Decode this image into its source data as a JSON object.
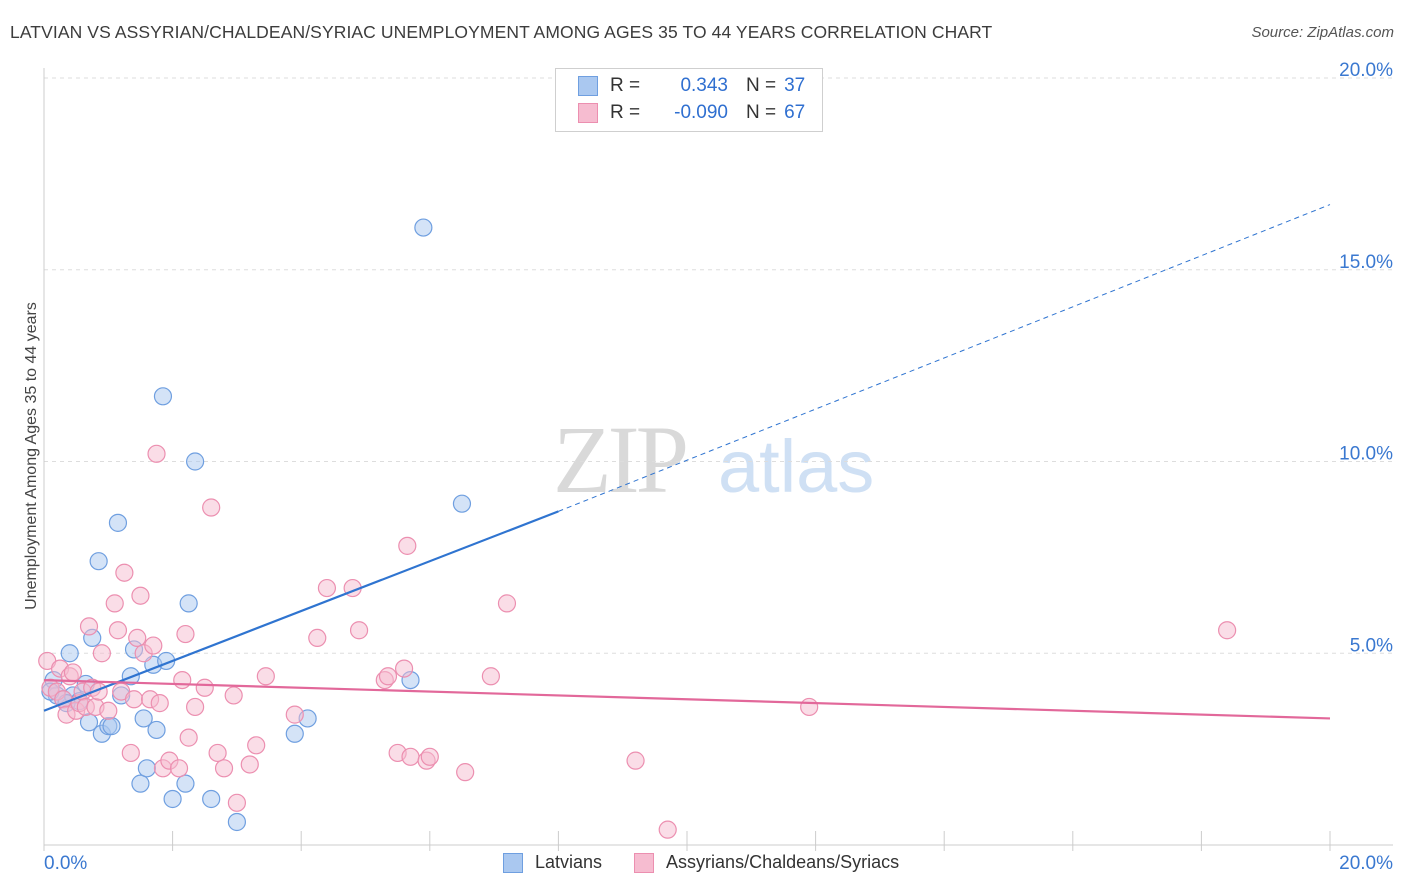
{
  "header": {
    "title": "LATVIAN VS ASSYRIAN/CHALDEAN/SYRIAC UNEMPLOYMENT AMONG AGES 35 TO 44 YEARS CORRELATION CHART",
    "source": "Source: ZipAtlas.com"
  },
  "watermark": {
    "zip": "ZIP",
    "atlas": "atlas"
  },
  "legend_top": {
    "rows": [
      {
        "r_label": "R =",
        "r_value": "0.343",
        "n_label": "N =",
        "n_value": "37"
      },
      {
        "r_label": "R =",
        "r_value": "-0.090",
        "n_label": "N =",
        "n_value": "67"
      }
    ]
  },
  "colors": {
    "blue_fill": "#aac8f0",
    "blue_stroke": "#6f9fe0",
    "blue_line": "#2f74d0",
    "pink_fill": "#f6bcd0",
    "pink_stroke": "#ec8fb0",
    "pink_line": "#e2689a",
    "tick_label": "#3a78d0",
    "grid": "#dddddd"
  },
  "chart_data": {
    "type": "scatter",
    "title": "LATVIAN VS ASSYRIAN/CHALDEAN/SYRIAC UNEMPLOYMENT AMONG AGES 35 TO 44 YEARS CORRELATION CHART",
    "xlabel": "",
    "ylabel": "Unemployment Among Ages 35 to 44 years",
    "xlim": [
      0,
      20
    ],
    "ylim": [
      0,
      20
    ],
    "x_tick_labels": [
      "0.0%",
      "20.0%"
    ],
    "y_tick_values": [
      5,
      10,
      15,
      20
    ],
    "y_tick_labels": [
      "5.0%",
      "10.0%",
      "15.0%",
      "20.0%"
    ],
    "grid": true,
    "series": [
      {
        "name": "Latvians",
        "r": 0.343,
        "n": 37,
        "trend": {
          "x0": 0,
          "y0": 3.5,
          "x1": 8,
          "y1": 8.7,
          "dashed_to_x": 20,
          "dashed_to_y": 16.7
        },
        "points": [
          [
            0.15,
            4.3
          ],
          [
            0.2,
            3.9
          ],
          [
            0.3,
            3.8
          ],
          [
            0.4,
            5.0
          ],
          [
            0.45,
            3.9
          ],
          [
            0.55,
            3.75
          ],
          [
            0.65,
            4.2
          ],
          [
            0.7,
            3.2
          ],
          [
            0.75,
            5.4
          ],
          [
            0.85,
            7.4
          ],
          [
            0.9,
            2.9
          ],
          [
            1.0,
            3.1
          ],
          [
            1.05,
            3.1
          ],
          [
            1.15,
            8.4
          ],
          [
            1.2,
            3.9
          ],
          [
            1.35,
            4.4
          ],
          [
            1.4,
            5.1
          ],
          [
            1.5,
            1.6
          ],
          [
            1.55,
            3.3
          ],
          [
            1.6,
            2.0
          ],
          [
            1.7,
            4.7
          ],
          [
            1.75,
            3.0
          ],
          [
            1.85,
            11.7
          ],
          [
            1.9,
            4.8
          ],
          [
            2.0,
            1.2
          ],
          [
            2.2,
            1.6
          ],
          [
            2.25,
            6.3
          ],
          [
            2.35,
            10.0
          ],
          [
            2.6,
            1.2
          ],
          [
            3.0,
            0.6
          ],
          [
            3.9,
            2.9
          ],
          [
            4.1,
            3.3
          ],
          [
            5.7,
            4.3
          ],
          [
            5.9,
            16.1
          ],
          [
            6.5,
            8.9
          ],
          [
            0.1,
            4.0
          ],
          [
            0.35,
            3.7
          ]
        ]
      },
      {
        "name": "Assyrians/Chaldeans/Syriacs",
        "r": -0.09,
        "n": 67,
        "trend": {
          "x0": 0,
          "y0": 4.3,
          "x1": 20,
          "y1": 3.3
        },
        "points": [
          [
            0.05,
            4.8
          ],
          [
            0.1,
            4.1
          ],
          [
            0.2,
            4.0
          ],
          [
            0.25,
            4.6
          ],
          [
            0.3,
            3.8
          ],
          [
            0.35,
            3.4
          ],
          [
            0.4,
            4.4
          ],
          [
            0.45,
            4.5
          ],
          [
            0.5,
            3.5
          ],
          [
            0.55,
            3.7
          ],
          [
            0.6,
            4.0
          ],
          [
            0.65,
            3.6
          ],
          [
            0.7,
            5.7
          ],
          [
            0.75,
            4.1
          ],
          [
            0.8,
            3.6
          ],
          [
            0.85,
            4.0
          ],
          [
            0.9,
            5.0
          ],
          [
            1.0,
            3.5
          ],
          [
            1.1,
            6.3
          ],
          [
            1.15,
            5.6
          ],
          [
            1.2,
            4.0
          ],
          [
            1.25,
            7.1
          ],
          [
            1.35,
            2.4
          ],
          [
            1.4,
            3.8
          ],
          [
            1.45,
            5.4
          ],
          [
            1.5,
            6.5
          ],
          [
            1.55,
            5.0
          ],
          [
            1.65,
            3.8
          ],
          [
            1.7,
            5.2
          ],
          [
            1.75,
            10.2
          ],
          [
            1.8,
            3.7
          ],
          [
            1.85,
            2.0
          ],
          [
            1.95,
            2.2
          ],
          [
            2.1,
            2.0
          ],
          [
            2.15,
            4.3
          ],
          [
            2.2,
            5.5
          ],
          [
            2.25,
            2.8
          ],
          [
            2.35,
            3.6
          ],
          [
            2.5,
            4.1
          ],
          [
            2.6,
            8.8
          ],
          [
            2.7,
            2.4
          ],
          [
            2.8,
            2.0
          ],
          [
            2.95,
            3.9
          ],
          [
            3.0,
            1.1
          ],
          [
            3.2,
            2.1
          ],
          [
            3.3,
            2.6
          ],
          [
            3.45,
            4.4
          ],
          [
            3.9,
            3.4
          ],
          [
            4.4,
            6.7
          ],
          [
            4.25,
            5.4
          ],
          [
            4.8,
            6.7
          ],
          [
            4.9,
            5.6
          ],
          [
            5.3,
            4.3
          ],
          [
            5.35,
            4.4
          ],
          [
            5.5,
            2.4
          ],
          [
            5.6,
            4.6
          ],
          [
            5.65,
            7.8
          ],
          [
            5.7,
            2.3
          ],
          [
            5.95,
            2.2
          ],
          [
            6.0,
            2.3
          ],
          [
            6.55,
            1.9
          ],
          [
            6.95,
            4.4
          ],
          [
            7.2,
            6.3
          ],
          [
            9.2,
            2.2
          ],
          [
            9.7,
            0.4
          ],
          [
            11.9,
            3.6
          ],
          [
            18.4,
            5.6
          ]
        ]
      }
    ]
  },
  "bottom_legend": [
    {
      "label": "Latvians"
    },
    {
      "label": "Assyrians/Chaldeans/Syriacs"
    }
  ]
}
